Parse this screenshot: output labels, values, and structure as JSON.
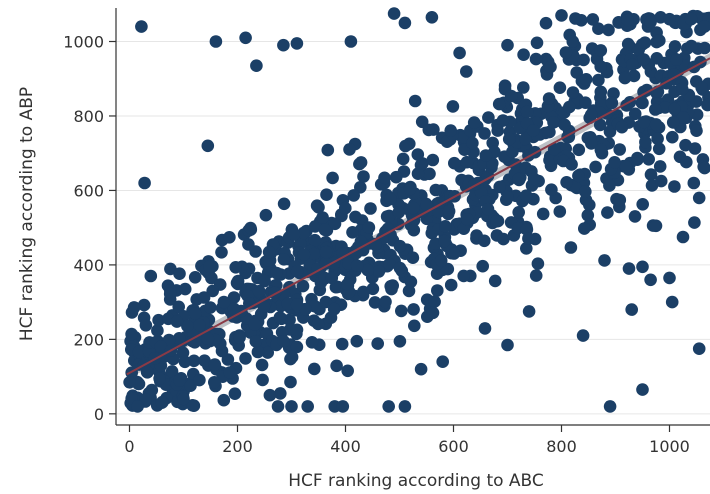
{
  "chart_data": {
    "type": "scatter",
    "xlabel": "HCF ranking according to ABC",
    "ylabel": "HCF ranking according to ABP",
    "xlim": [
      -25,
      1075
    ],
    "ylim": [
      -30,
      1090
    ],
    "x_ticks": [
      0,
      200,
      400,
      600,
      800,
      1000
    ],
    "y_ticks": [
      0,
      200,
      400,
      600,
      800,
      1000
    ],
    "grid": "horizontal",
    "colors": {
      "points": "#1b3f66",
      "fit_line": "#8a3a46",
      "confidence_band": "#b5b9bf",
      "grid": "#e6e6e6",
      "axis": "#333333"
    },
    "fit_line": {
      "x": [
        0,
        1075
      ],
      "y": [
        110,
        955
      ]
    },
    "confidence_band_halfwidth": 14,
    "n_points_approx": 1075,
    "highlighted_points": [
      {
        "x": 22,
        "y": 1040
      },
      {
        "x": 28,
        "y": 620
      },
      {
        "x": 145,
        "y": 720
      },
      {
        "x": 160,
        "y": 1000
      },
      {
        "x": 215,
        "y": 1010
      },
      {
        "x": 235,
        "y": 935
      },
      {
        "x": 285,
        "y": 990
      },
      {
        "x": 310,
        "y": 995
      },
      {
        "x": 410,
        "y": 1000
      },
      {
        "x": 490,
        "y": 1075
      },
      {
        "x": 510,
        "y": 1050
      },
      {
        "x": 560,
        "y": 1065
      },
      {
        "x": 800,
        "y": 1070
      },
      {
        "x": 700,
        "y": 990
      },
      {
        "x": 480,
        "y": 20
      },
      {
        "x": 510,
        "y": 20
      },
      {
        "x": 275,
        "y": 20
      },
      {
        "x": 300,
        "y": 20
      },
      {
        "x": 330,
        "y": 20
      },
      {
        "x": 380,
        "y": 20
      },
      {
        "x": 395,
        "y": 20
      },
      {
        "x": 890,
        "y": 20
      },
      {
        "x": 950,
        "y": 65
      },
      {
        "x": 700,
        "y": 185
      },
      {
        "x": 840,
        "y": 210
      },
      {
        "x": 1055,
        "y": 175
      },
      {
        "x": 930,
        "y": 280
      },
      {
        "x": 1005,
        "y": 300
      },
      {
        "x": 1000,
        "y": 365
      },
      {
        "x": 965,
        "y": 360
      },
      {
        "x": 925,
        "y": 390
      },
      {
        "x": 950,
        "y": 395
      },
      {
        "x": 975,
        "y": 505
      },
      {
        "x": 1025,
        "y": 475
      },
      {
        "x": 1065,
        "y": 660
      },
      {
        "x": 1055,
        "y": 580
      },
      {
        "x": 1045,
        "y": 620
      },
      {
        "x": 740,
        "y": 275
      },
      {
        "x": 580,
        "y": 140
      },
      {
        "x": 540,
        "y": 120
      },
      {
        "x": 260,
        "y": 50
      },
      {
        "x": 15,
        "y": 20
      },
      {
        "x": 60,
        "y": 30
      },
      {
        "x": 100,
        "y": 40
      },
      {
        "x": 1000,
        "y": 1060
      },
      {
        "x": 1040,
        "y": 1060
      },
      {
        "x": 1065,
        "y": 1040
      }
    ]
  }
}
